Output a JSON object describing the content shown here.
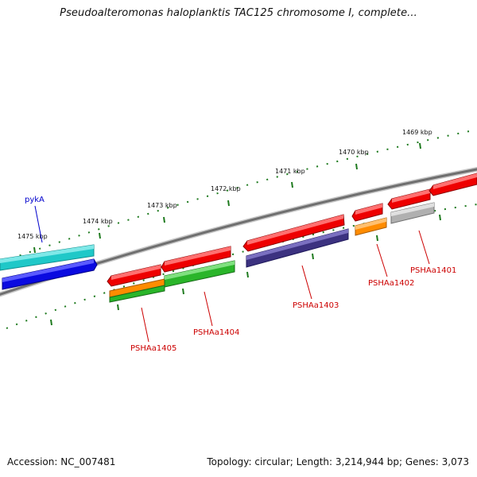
{
  "title": "Pseudoalteromonas haloplanktis TAC125 chromosome I, complete...",
  "footer": {
    "accession": "Accession: NC_007481",
    "summary": "Topology: circular; Length: 3,214,944 bp; Genes: 3,073"
  },
  "ruler_labels": [
    "1475 kbp",
    "1474 kbp",
    "1473 kbp",
    "1472 kbp",
    "1471 kbp",
    "1470 kbp",
    "1469 kbp"
  ],
  "gene_labels": {
    "pykA": "pykA",
    "a1401": "PSHAa1401",
    "a1402": "PSHAa1402",
    "a1403": "PSHAa1403",
    "a1404": "PSHAa1404",
    "a1405": "PSHAa1405"
  },
  "colors": {
    "backbone": "#7a7a7a",
    "tick": "#1e7a1e",
    "red": "#ee0000",
    "blue": "#0a0ae0",
    "cyan": "#1fc8c8",
    "green": "#2ab52a",
    "orange": "#ff8c00",
    "navy": "#3c3280",
    "gray": "#b0b0b0",
    "label_red": "#cc0000",
    "label_blue": "#0000cc"
  }
}
